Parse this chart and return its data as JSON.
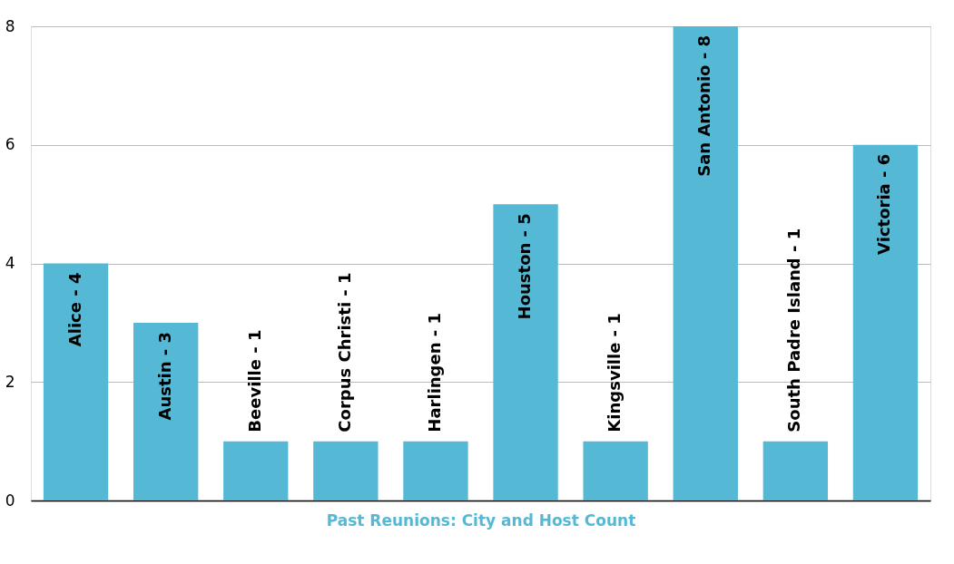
{
  "chart_data": {
    "type": "bar",
    "categories": [
      "Alice - 4",
      "Austin - 3",
      "Beeville - 1",
      "Corpus Christi - 1",
      "Harlingen - 1",
      "Houston - 5",
      "Kingsville - 1",
      "San Antonio - 8",
      "South Padre Island - 1",
      "Victoria - 6"
    ],
    "values": [
      4,
      3,
      1,
      1,
      1,
      5,
      1,
      8,
      1,
      6
    ],
    "color": "#55b9d6",
    "xlabel": "Past Reunions: City and Host Count",
    "ylim": [
      0,
      8
    ],
    "yticks": [
      0,
      2,
      4,
      6,
      8
    ],
    "grid": "y",
    "tick_labels": "y"
  }
}
